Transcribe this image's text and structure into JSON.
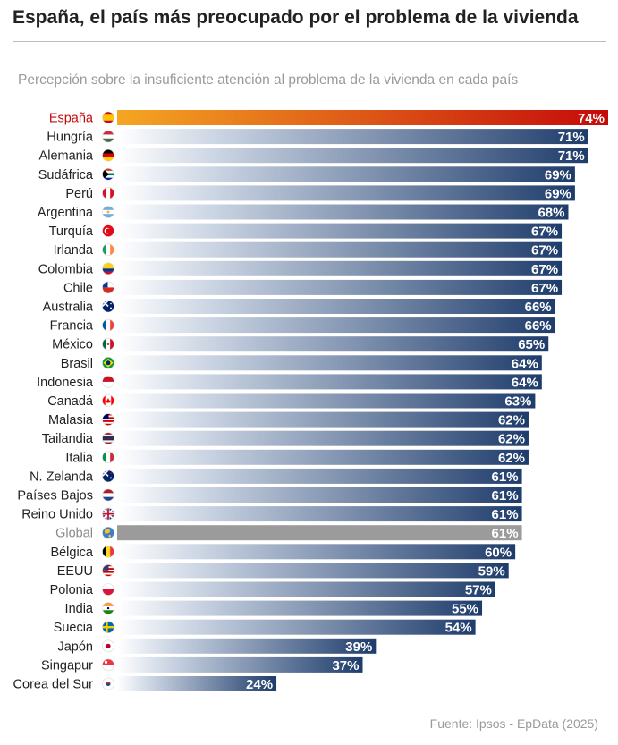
{
  "header": {
    "title": "España, el país más preocupado por el problema de la vivienda",
    "subtitle": "Percepción sobre la insuficiente atención al problema de la vivienda en cada país"
  },
  "footer": {
    "source": "Fuente: Ipsos - EpData (2025)"
  },
  "colors": {
    "highlight_start": "#f5a623",
    "highlight_end": "#c50a0a",
    "bar_start": "#ffffff",
    "bar_end": "#1e3c6b",
    "global_bar": "#9b9b9b",
    "label_text": "#222222",
    "global_label": "#8a8a8a",
    "value_text": "#ffffff"
  },
  "chart_data": {
    "type": "bar",
    "orientation": "horizontal",
    "title": "España, el país más preocupado por el problema de la vivienda",
    "subtitle": "Percepción sobre la insuficiente atención al problema de la vivienda en cada país",
    "unit": "%",
    "xlim": [
      0,
      74
    ],
    "categories": [
      "España",
      "Hungría",
      "Alemania",
      "Sudáfrica",
      "Perú",
      "Argentina",
      "Turquía",
      "Irlanda",
      "Colombia",
      "Chile",
      "Australia",
      "Francia",
      "México",
      "Brasil",
      "Indonesia",
      "Canadá",
      "Malasia",
      "Tailandia",
      "Italia",
      "N. Zelanda",
      "Países Bajos",
      "Reino Unido",
      "Global",
      "Bélgica",
      "EEUU",
      "Polonia",
      "India",
      "Suecia",
      "Japón",
      "Singapur",
      "Corea del Sur"
    ],
    "values": [
      74,
      71,
      71,
      69,
      69,
      68,
      67,
      67,
      67,
      67,
      66,
      66,
      65,
      64,
      64,
      63,
      62,
      62,
      62,
      61,
      61,
      61,
      61,
      60,
      59,
      57,
      55,
      54,
      39,
      37,
      24
    ],
    "highlight": "España",
    "reference": "Global",
    "flag_icons": [
      "flag-spain-icon",
      "flag-hungary-icon",
      "flag-germany-icon",
      "flag-south-africa-icon",
      "flag-peru-icon",
      "flag-argentina-icon",
      "flag-turkey-icon",
      "flag-ireland-icon",
      "flag-colombia-icon",
      "flag-chile-icon",
      "flag-australia-icon",
      "flag-france-icon",
      "flag-mexico-icon",
      "flag-brazil-icon",
      "flag-indonesia-icon",
      "flag-canada-icon",
      "flag-malaysia-icon",
      "flag-thailand-icon",
      "flag-italy-icon",
      "flag-new-zealand-icon",
      "flag-netherlands-icon",
      "flag-united-kingdom-icon",
      "globe-icon",
      "flag-belgium-icon",
      "flag-usa-icon",
      "flag-poland-icon",
      "flag-india-icon",
      "flag-sweden-icon",
      "flag-japan-icon",
      "flag-singapore-icon",
      "flag-south-korea-icon"
    ]
  }
}
